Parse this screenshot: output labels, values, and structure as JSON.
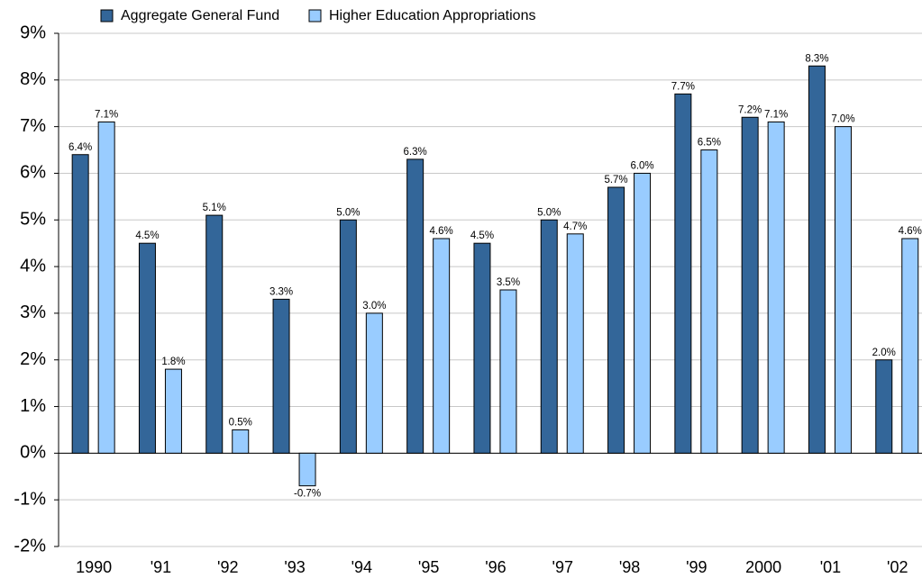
{
  "chart_data": {
    "type": "bar",
    "categories": [
      "1990",
      "'91",
      "'92",
      "'93",
      "'94",
      "'95",
      "'96",
      "'97",
      "'98",
      "'99",
      "2000",
      "'01",
      "'02"
    ],
    "series": [
      {
        "name": "Aggregate General Fund",
        "color": "#336699",
        "values": [
          6.4,
          4.5,
          5.1,
          3.3,
          5.0,
          6.3,
          4.5,
          5.0,
          5.7,
          7.7,
          7.2,
          8.3,
          2.0
        ],
        "value_labels": [
          "6.4%",
          "4.5%",
          "5.1%",
          "3.3%",
          "5.0%",
          "6.3%",
          "4.5%",
          "5.0%",
          "5.7%",
          "7.7%",
          "7.2%",
          "8.3%",
          "2.0%"
        ]
      },
      {
        "name": "Higher Education Appropriations",
        "color": "#99ccff",
        "values": [
          7.1,
          1.8,
          0.5,
          -0.7,
          3.0,
          4.6,
          3.5,
          4.7,
          6.0,
          6.5,
          7.1,
          7.0,
          4.6
        ],
        "value_labels": [
          "7.1%",
          "1.8%",
          "0.5%",
          "-0.7%",
          "3.0%",
          "4.6%",
          "3.5%",
          "4.7%",
          "6.0%",
          "6.5%",
          "7.1%",
          "7.0%",
          "4.6%"
        ]
      }
    ],
    "ylim": [
      -2,
      9
    ],
    "yticks": [
      {
        "value": -2,
        "label": "-2%"
      },
      {
        "value": -1,
        "label": "-1%"
      },
      {
        "value": 0,
        "label": "0%"
      },
      {
        "value": 1,
        "label": "1%"
      },
      {
        "value": 2,
        "label": "2%"
      },
      {
        "value": 3,
        "label": "3%"
      },
      {
        "value": 4,
        "label": "4%"
      },
      {
        "value": 5,
        "label": "5%"
      },
      {
        "value": 6,
        "label": "6%"
      },
      {
        "value": 7,
        "label": "7%"
      },
      {
        "value": 8,
        "label": "8%"
      },
      {
        "value": 9,
        "label": "9%"
      }
    ],
    "grid": true,
    "legend": "top"
  }
}
